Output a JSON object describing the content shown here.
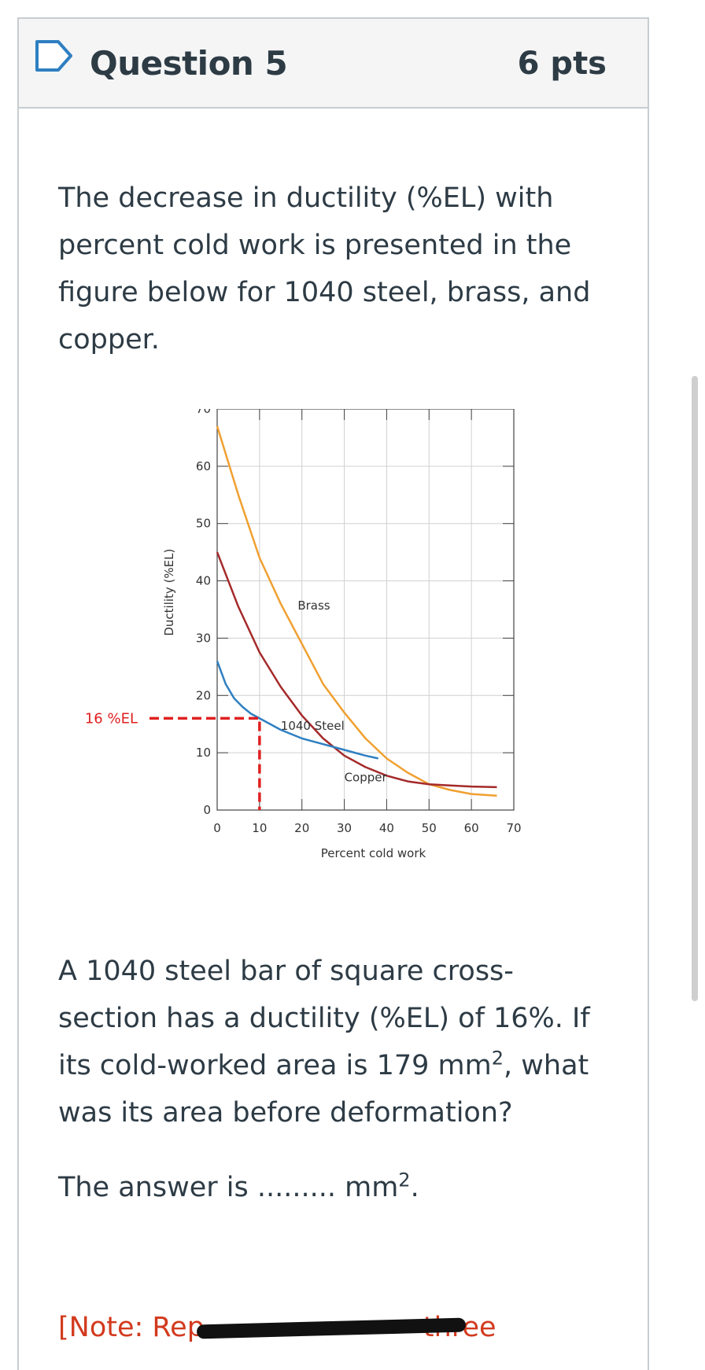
{
  "question": {
    "title": "Question 5",
    "points": "6 pts",
    "intro": "The decrease in ductility (%EL) with percent cold work is presented in the figure below for 1040 steel, brass, and copper.",
    "problem_before_sup": "A 1040 steel bar of square cross-section has a ductility (%EL) of 16%. If its cold-worked area is 179 mm",
    "problem_after_sup": ", what was its area before deformation?",
    "answer_before_sup": "The answer is ......... mm",
    "answer_after_sup": ".",
    "superscript": "2",
    "note": "[Note: Rep",
    "note_end": "three"
  },
  "chart_data": {
    "type": "line",
    "xlabel": "Percent cold work",
    "ylabel": "Ductility (%EL)",
    "xlim": [
      0,
      70
    ],
    "ylim": [
      0,
      70
    ],
    "xticks": [
      0,
      10,
      20,
      30,
      40,
      50,
      60,
      70
    ],
    "yticks": [
      0,
      10,
      20,
      30,
      40,
      50,
      60,
      70
    ],
    "grid": true,
    "series": [
      {
        "name": "Brass",
        "color": "#f0a030",
        "x": [
          0,
          5,
          10,
          15,
          20,
          25,
          30,
          35,
          40,
          45,
          50,
          55,
          60,
          66
        ],
        "y": [
          67,
          55,
          44,
          36,
          29,
          22,
          17,
          12.5,
          9,
          6.5,
          4.5,
          3.5,
          2.8,
          2.5
        ]
      },
      {
        "name": "Copper",
        "color": "#a52a2a",
        "x": [
          0,
          5,
          10,
          15,
          20,
          25,
          30,
          35,
          40,
          45,
          50,
          55,
          60,
          66
        ],
        "y": [
          45,
          35.5,
          27.5,
          21.5,
          16.5,
          12.5,
          9.5,
          7.5,
          6,
          5,
          4.5,
          4.3,
          4.1,
          4
        ]
      },
      {
        "name": "1040 Steel",
        "color": "#2f7fc1",
        "x": [
          0,
          2,
          4,
          6,
          8,
          10,
          15,
          20,
          25,
          30,
          35,
          38
        ],
        "y": [
          26,
          22,
          19.5,
          18,
          16.8,
          16,
          14,
          12.5,
          11.5,
          10.5,
          9.5,
          9
        ]
      }
    ],
    "series_labels": [
      {
        "text": "Brass",
        "x": 19,
        "y": 35
      },
      {
        "text": "1040 Steel",
        "x": 15,
        "y": 14
      },
      {
        "text": "Copper",
        "x": 30,
        "y": 5
      }
    ],
    "annotation": {
      "text": "16 %EL",
      "y": 16,
      "x": 10,
      "color": "#e02020"
    }
  }
}
